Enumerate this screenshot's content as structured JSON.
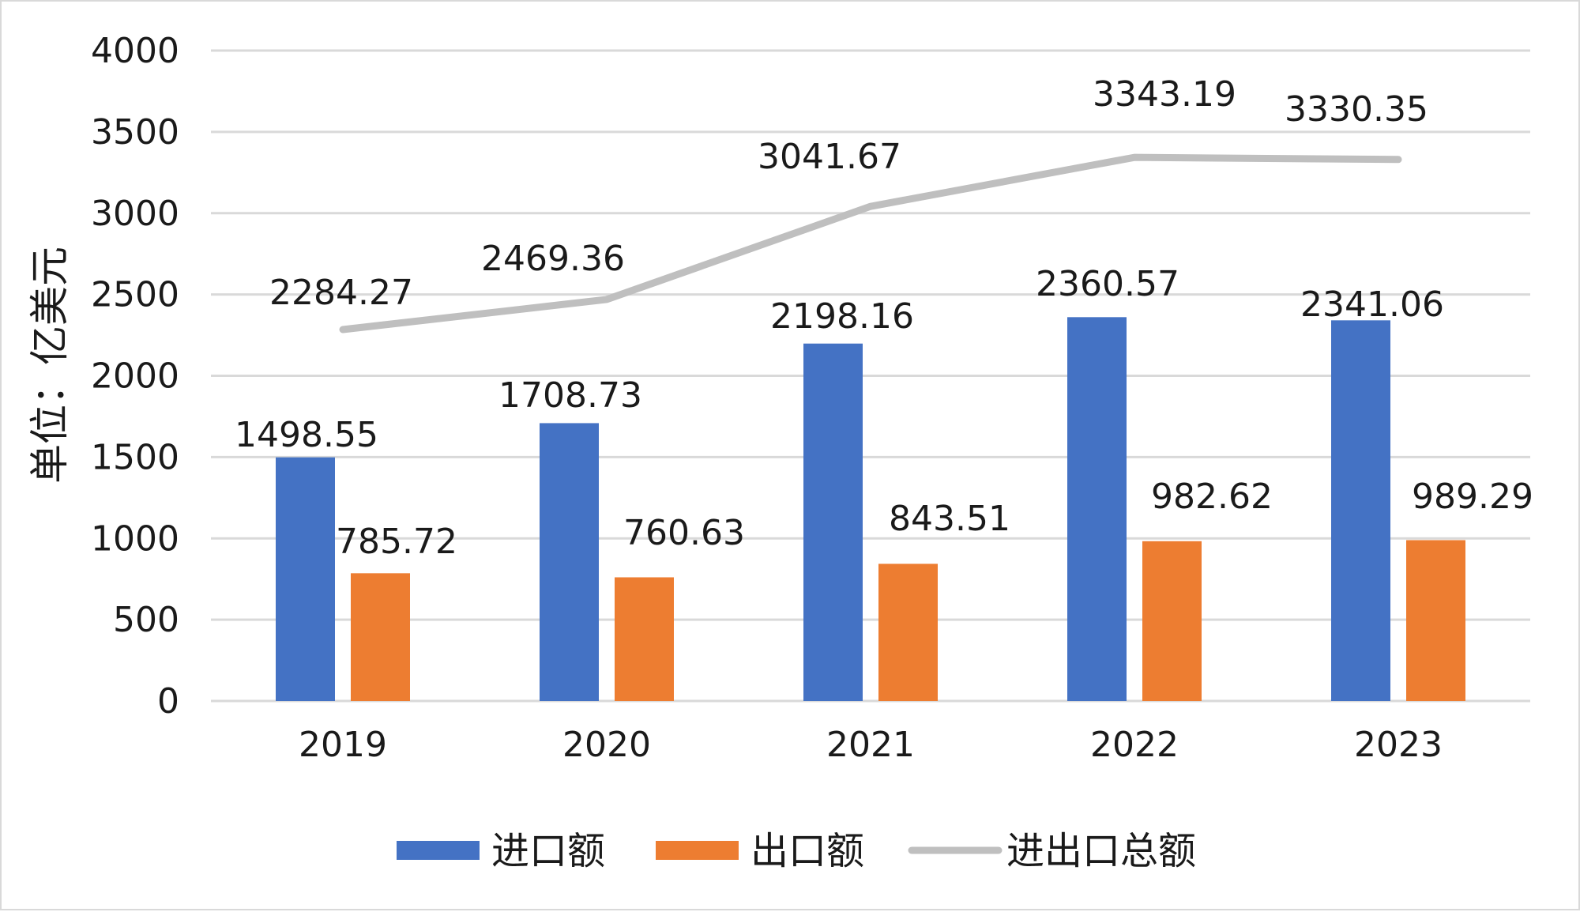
{
  "chart_data": {
    "type": "bar+line",
    "title": "",
    "ylabel": "单位：亿美元",
    "xlabel": "",
    "categories": [
      "2019",
      "2020",
      "2021",
      "2022",
      "2023"
    ],
    "ylim": [
      0,
      4000
    ],
    "yticks": [
      0,
      500,
      1000,
      1500,
      2000,
      2500,
      3000,
      3500,
      4000
    ],
    "grid": true,
    "legend_position": "bottom",
    "series": [
      {
        "name": "进口额",
        "type": "bar",
        "color": "#4472C4",
        "values": [
          1498.55,
          1708.73,
          2198.16,
          2360.57,
          2341.06
        ],
        "labels": [
          "1498.55",
          "1708.73",
          "2198.16",
          "2360.57",
          "2341.06"
        ]
      },
      {
        "name": "出口额",
        "type": "bar",
        "color": "#ED7D31",
        "values": [
          785.72,
          760.63,
          843.51,
          982.62,
          989.29
        ],
        "labels": [
          "785.72",
          "760.63",
          "843.51",
          "982.62",
          "989.29"
        ]
      },
      {
        "name": "进出口总额",
        "type": "line",
        "color": "#BFBFBF",
        "values": [
          2284.27,
          2469.36,
          3041.67,
          3343.19,
          3330.35
        ],
        "labels": [
          "2284.27",
          "2469.36",
          "3041.67",
          "3343.19",
          "3330.35"
        ]
      }
    ]
  }
}
